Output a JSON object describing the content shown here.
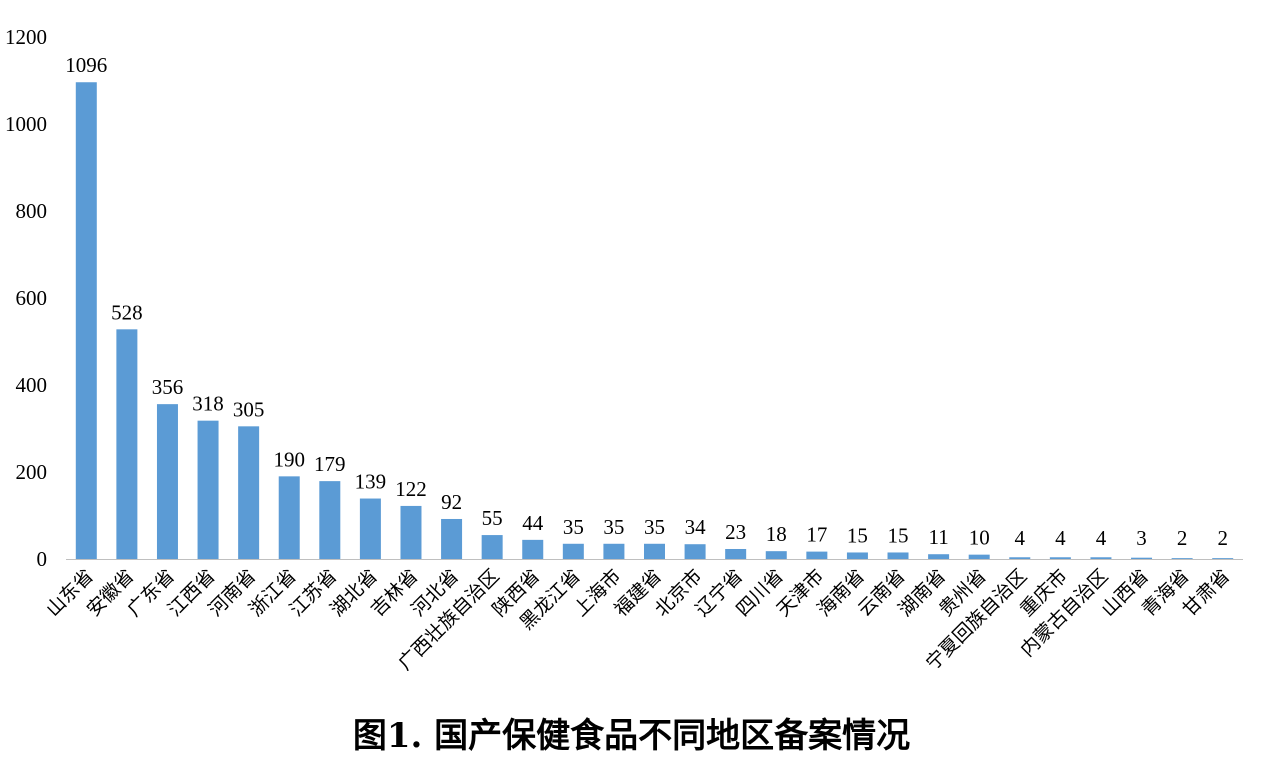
{
  "chart_data": {
    "type": "bar",
    "title": "图1. 国产保健食品不同地区备案情况",
    "xlabel": "",
    "ylabel": "",
    "ylim": [
      0,
      1200
    ],
    "yticks": [
      0,
      200,
      400,
      600,
      800,
      1000,
      1200
    ],
    "grid": false,
    "bar_color": "#5B9BD5",
    "categories": [
      "山东省",
      "安徽省",
      "广东省",
      "江西省",
      "河南省",
      "浙江省",
      "江苏省",
      "湖北省",
      "吉林省",
      "河北省",
      "广西壮族自治区",
      "陕西省",
      "黑龙江省",
      "上海市",
      "福建省",
      "北京市",
      "辽宁省",
      "四川省",
      "天津市",
      "海南省",
      "云南省",
      "湖南省",
      "贵州省",
      "宁夏回族自治区",
      "重庆市",
      "内蒙古自治区",
      "山西省",
      "青海省",
      "甘肃省"
    ],
    "values": [
      1096,
      528,
      356,
      318,
      305,
      190,
      179,
      139,
      122,
      92,
      55,
      44,
      35,
      35,
      35,
      34,
      23,
      18,
      17,
      15,
      15,
      11,
      10,
      4,
      4,
      4,
      3,
      2,
      2
    ]
  }
}
